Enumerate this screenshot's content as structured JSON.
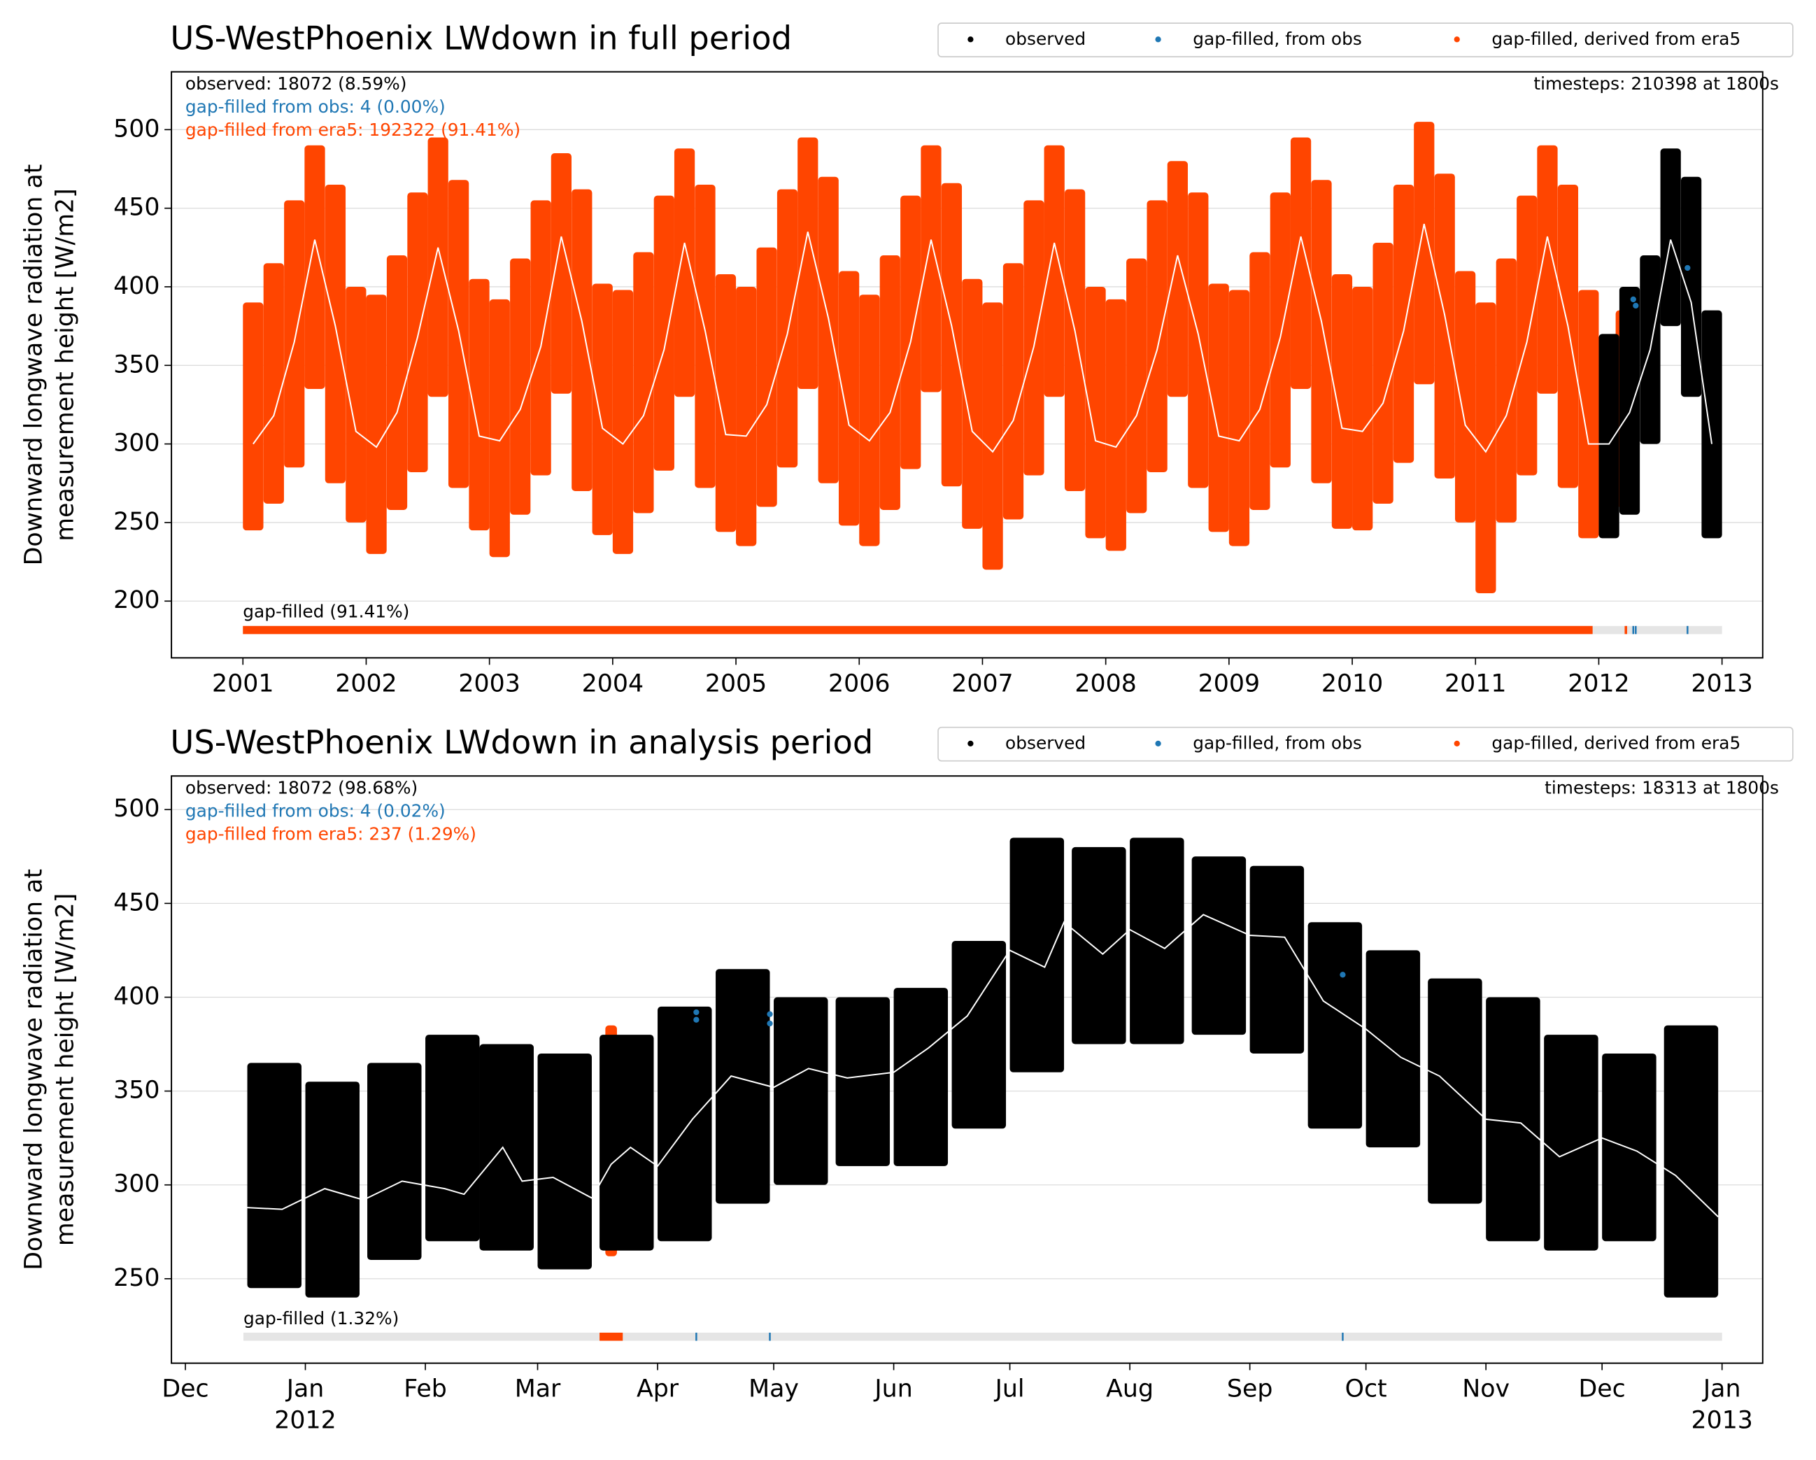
{
  "chart_data": [
    {
      "type": "scatter",
      "title": "US-WestPhoenix LWdown in full period",
      "ylabel": [
        "Downward longwave radiation at",
        "measurement height [W/m2]"
      ],
      "xlim": [
        2000.42,
        2013.33
      ],
      "xticks": [
        2001,
        2002,
        2003,
        2004,
        2005,
        2006,
        2007,
        2008,
        2009,
        2010,
        2011,
        2012,
        2013
      ],
      "ylim": [
        163.9,
        536.8
      ],
      "yticks": [
        200,
        250,
        300,
        350,
        400,
        450,
        500
      ],
      "grid": true,
      "stats": [
        {
          "text": "observed: 18072 (8.59%)",
          "color": "#000000"
        },
        {
          "text": "gap-filled from obs: 4 (0.00%)",
          "color": "#1f77b4"
        },
        {
          "text": "gap-filled from era5: 192322 (91.41%)",
          "color": "#ff4500"
        }
      ],
      "timesteps": "timesteps: 210398 at 1800s",
      "series": [
        {
          "name": "observed",
          "color": "#000000",
          "x": [
            2012.083,
            2012.25,
            2012.417,
            2012.583,
            2012.75,
            2012.917
          ],
          "low": [
            240,
            255,
            300,
            375,
            330,
            240
          ],
          "high": [
            370,
            400,
            420,
            488,
            470,
            385
          ]
        },
        {
          "name": "gap-filled, from obs",
          "color": "#1f77b4",
          "x": [
            2012.28,
            2012.3,
            2012.72
          ],
          "values": [
            392,
            388,
            412
          ]
        },
        {
          "name": "gap-filled, derived from era5",
          "color": "#ff4500",
          "x": [
            2001.083,
            2001.25,
            2001.417,
            2001.583,
            2001.75,
            2001.917,
            2002.083,
            2002.25,
            2002.417,
            2002.583,
            2002.75,
            2002.917,
            2003.083,
            2003.25,
            2003.417,
            2003.583,
            2003.75,
            2003.917,
            2004.083,
            2004.25,
            2004.417,
            2004.583,
            2004.75,
            2004.917,
            2005.083,
            2005.25,
            2005.417,
            2005.583,
            2005.75,
            2005.917,
            2006.083,
            2006.25,
            2006.417,
            2006.583,
            2006.75,
            2006.917,
            2007.083,
            2007.25,
            2007.417,
            2007.583,
            2007.75,
            2007.917,
            2008.083,
            2008.25,
            2008.417,
            2008.583,
            2008.75,
            2008.917,
            2009.083,
            2009.25,
            2009.417,
            2009.583,
            2009.75,
            2009.917,
            2010.083,
            2010.25,
            2010.417,
            2010.583,
            2010.75,
            2010.917,
            2011.083,
            2011.25,
            2011.417,
            2011.583,
            2011.75,
            2011.917,
            2012.22
          ],
          "low": [
            245,
            262,
            285,
            335,
            275,
            250,
            230,
            258,
            282,
            330,
            272,
            245,
            228,
            255,
            280,
            332,
            270,
            242,
            230,
            256,
            283,
            330,
            272,
            244,
            235,
            260,
            285,
            335,
            275,
            248,
            235,
            258,
            284,
            333,
            273,
            246,
            220,
            252,
            280,
            330,
            270,
            240,
            232,
            256,
            282,
            330,
            272,
            244,
            235,
            258,
            285,
            335,
            275,
            246,
            245,
            262,
            288,
            338,
            278,
            250,
            205,
            250,
            280,
            332,
            272,
            240,
            260
          ],
          "high": [
            390,
            415,
            455,
            490,
            465,
            400,
            395,
            420,
            460,
            495,
            468,
            405,
            392,
            418,
            455,
            485,
            462,
            402,
            398,
            422,
            458,
            488,
            465,
            408,
            400,
            425,
            462,
            495,
            470,
            410,
            395,
            420,
            458,
            490,
            466,
            405,
            390,
            415,
            455,
            490,
            462,
            400,
            392,
            418,
            455,
            480,
            460,
            402,
            398,
            422,
            460,
            495,
            468,
            408,
            400,
            428,
            465,
            505,
            472,
            410,
            390,
            418,
            458,
            490,
            465,
            398,
            385
          ]
        }
      ],
      "mean": {
        "color": "#ffffff",
        "x": [
          2001.083,
          2001.25,
          2001.417,
          2001.583,
          2001.75,
          2001.917,
          2002.083,
          2002.25,
          2002.417,
          2002.583,
          2002.75,
          2002.917,
          2003.083,
          2003.25,
          2003.417,
          2003.583,
          2003.75,
          2003.917,
          2004.083,
          2004.25,
          2004.417,
          2004.583,
          2004.75,
          2004.917,
          2005.083,
          2005.25,
          2005.417,
          2005.583,
          2005.75,
          2005.917,
          2006.083,
          2006.25,
          2006.417,
          2006.583,
          2006.75,
          2006.917,
          2007.083,
          2007.25,
          2007.417,
          2007.583,
          2007.75,
          2007.917,
          2008.083,
          2008.25,
          2008.417,
          2008.583,
          2008.75,
          2008.917,
          2009.083,
          2009.25,
          2009.417,
          2009.583,
          2009.75,
          2009.917,
          2010.083,
          2010.25,
          2010.417,
          2010.583,
          2010.75,
          2010.917,
          2011.083,
          2011.25,
          2011.417,
          2011.583,
          2011.75,
          2011.917,
          2012.083,
          2012.25,
          2012.417,
          2012.583,
          2012.75,
          2012.917
        ],
        "values": [
          300,
          318,
          365,
          430,
          375,
          308,
          298,
          320,
          368,
          425,
          372,
          305,
          302,
          322,
          362,
          432,
          378,
          310,
          300,
          318,
          360,
          428,
          372,
          306,
          305,
          325,
          370,
          435,
          380,
          312,
          302,
          320,
          365,
          430,
          375,
          308,
          295,
          315,
          362,
          428,
          372,
          302,
          298,
          318,
          360,
          420,
          370,
          305,
          302,
          322,
          368,
          432,
          378,
          310,
          308,
          326,
          372,
          440,
          382,
          312,
          295,
          318,
          365,
          432,
          375,
          300,
          300,
          320,
          360,
          430,
          390,
          300
        ]
      },
      "gap_bar": {
        "label": "gap-filled (91.41%)",
        "y": 181.6,
        "segments": [
          {
            "start": 2001,
            "end": 2013,
            "color": "#e5e5e5"
          },
          {
            "start": 2001,
            "end": 2011.95,
            "color": "#ff4500"
          },
          {
            "start": 2012.21,
            "end": 2012.23,
            "color": "#ff4500"
          },
          {
            "start": 2012.28,
            "end": 2012.28,
            "color": "#1f77b4"
          },
          {
            "start": 2012.3,
            "end": 2012.3,
            "color": "#1f77b4"
          },
          {
            "start": 2012.72,
            "end": 2012.72,
            "color": "#1f77b4"
          }
        ]
      }
    },
    {
      "type": "scatter",
      "title": "US-WestPhoenix LWdown in analysis period",
      "ylabel": [
        "Downward longwave radiation at",
        "measurement height [W/m2]"
      ],
      "xlim": [
        -34.6,
        376.5
      ],
      "xticks": [
        {
          "value": -31,
          "label": "Dec"
        },
        {
          "value": 0,
          "label": "Jan"
        },
        {
          "value": 31,
          "label": "Feb"
        },
        {
          "value": 60,
          "label": "Mar"
        },
        {
          "value": 91,
          "label": "Apr"
        },
        {
          "value": 121,
          "label": "May"
        },
        {
          "value": 152,
          "label": "Jun"
        },
        {
          "value": 182,
          "label": "Jul"
        },
        {
          "value": 213,
          "label": "Aug"
        },
        {
          "value": 244,
          "label": "Sep"
        },
        {
          "value": 274,
          "label": "Oct"
        },
        {
          "value": 305,
          "label": "Nov"
        },
        {
          "value": 335,
          "label": "Dec"
        },
        {
          "value": 366,
          "label": "Jan"
        }
      ],
      "year_labels": [
        {
          "value": 0,
          "label": "2012"
        },
        {
          "value": 366,
          "label": "2013"
        }
      ],
      "ylim": [
        205,
        517.9
      ],
      "yticks": [
        250,
        300,
        350,
        400,
        450,
        500
      ],
      "grid": true,
      "stats": [
        {
          "text": "observed: 18072 (98.68%)",
          "color": "#000000"
        },
        {
          "text": "gap-filled from obs: 4 (0.02%)",
          "color": "#1f77b4"
        },
        {
          "text": "gap-filled from era5: 237 (1.29%)",
          "color": "#ff4500"
        }
      ],
      "timesteps": "timesteps: 18313 at 1800s",
      "series": [
        {
          "name": "observed",
          "color": "#000000",
          "x": [
            -8,
            7,
            23,
            38,
            52,
            67,
            83,
            98,
            113,
            128,
            144,
            159,
            174,
            189,
            205,
            220,
            236,
            251,
            266,
            281,
            297,
            312,
            327,
            342,
            358
          ],
          "low": [
            245,
            240,
            260,
            270,
            265,
            255,
            265,
            270,
            290,
            300,
            310,
            310,
            330,
            360,
            375,
            375,
            380,
            370,
            330,
            320,
            290,
            270,
            265,
            270,
            240
          ],
          "high": [
            365,
            355,
            365,
            380,
            375,
            370,
            380,
            395,
            415,
            400,
            400,
            405,
            430,
            485,
            480,
            485,
            475,
            470,
            440,
            425,
            410,
            400,
            380,
            370,
            385
          ]
        },
        {
          "name": "gap-filled, from obs",
          "color": "#1f77b4",
          "x": [
            101,
            101,
            120,
            120,
            268
          ],
          "values": [
            392,
            388,
            391,
            386,
            412
          ]
        },
        {
          "name": "gap-filled, derived from era5",
          "color": "#ff4500",
          "x": [
            79,
            82
          ],
          "low": [
            262,
            270
          ],
          "high": [
            385,
            355
          ]
        }
      ],
      "mean": {
        "color": "#ffffff",
        "x": [
          -16,
          -6,
          5,
          15,
          25,
          36,
          41,
          51,
          56,
          64,
          74,
          79,
          84,
          91,
          100,
          110,
          121,
          130,
          140,
          152,
          161,
          171,
          182,
          191,
          196,
          206,
          213,
          222,
          232,
          244,
          253,
          263,
          274,
          283,
          293,
          305,
          314,
          324,
          335,
          344,
          354,
          365
        ],
        "values": [
          288,
          287,
          298,
          292,
          302,
          298,
          295,
          320,
          302,
          304,
          293,
          311,
          320,
          310,
          335,
          358,
          352,
          362,
          357,
          360,
          373,
          390,
          425,
          416,
          440,
          423,
          436,
          426,
          444,
          433,
          432,
          398,
          383,
          368,
          358,
          335,
          333,
          315,
          325,
          318,
          305,
          283
        ]
      },
      "gap_bar": {
        "label": "gap-filled (1.32%)",
        "y": 219.1,
        "segments": [
          {
            "start": -16,
            "end": 366,
            "color": "#e5e5e5"
          },
          {
            "start": 76,
            "end": 82,
            "color": "#ff4500"
          },
          {
            "start": 101,
            "end": 101,
            "color": "#1f77b4"
          },
          {
            "start": 120,
            "end": 120,
            "color": "#1f77b4"
          },
          {
            "start": 268,
            "end": 268,
            "color": "#1f77b4"
          }
        ]
      }
    }
  ]
}
